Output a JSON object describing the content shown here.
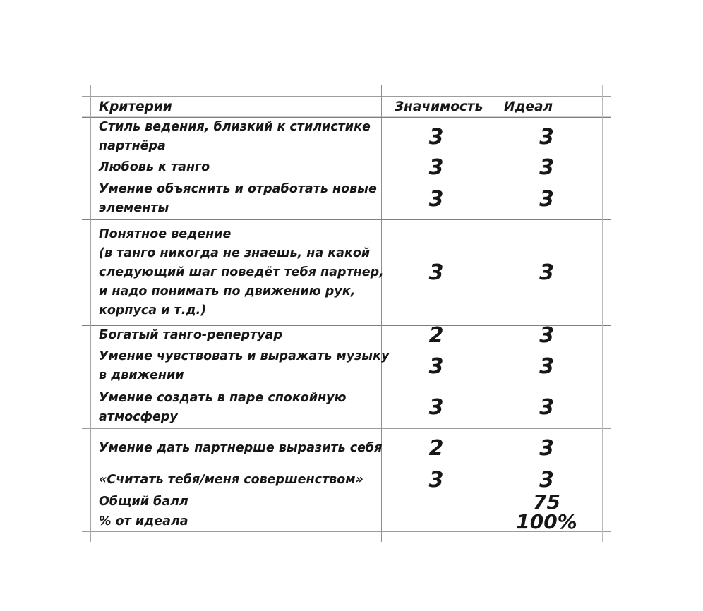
{
  "table": {
    "headers": {
      "criteria": "Критерии",
      "significance": "Значимость",
      "ideal": "Идеал"
    },
    "rows": [
      {
        "criteria": "Стиль ведения, близкий к стилистике\nпартнёра",
        "significance": "3",
        "ideal": "3"
      },
      {
        "criteria": "Любовь к танго",
        "significance": "3",
        "ideal": "3"
      },
      {
        "criteria": "Умение объяснить и отработать новые\nэлементы",
        "significance": "3",
        "ideal": "3"
      },
      {
        "criteria": "Понятное ведение\n(в танго никогда не знаешь, на какой\nследующий шаг поведёт тебя партнер,\nи надо понимать по движению рук,\nкорпуса и т.д.)",
        "significance": "3",
        "ideal": "3"
      },
      {
        "criteria": "Богатый танго-репертуар",
        "significance": "2",
        "ideal": "3"
      },
      {
        "criteria": "Умение чувствовать и выражать музыку\nв движении",
        "significance": "3",
        "ideal": "3"
      },
      {
        "criteria": "Умение создать в паре спокойную\nатмосферу",
        "significance": "3",
        "ideal": "3"
      },
      {
        "criteria": "Умение дать партнерше выразить себя",
        "significance": "2",
        "ideal": "3"
      },
      {
        "criteria": "«Считать тебя/меня совершенством»",
        "significance": "3",
        "ideal": "3"
      }
    ],
    "summary": [
      {
        "label": "Общий балл",
        "value": "75"
      },
      {
        "label": "% от идеала",
        "value": "100%"
      }
    ]
  }
}
